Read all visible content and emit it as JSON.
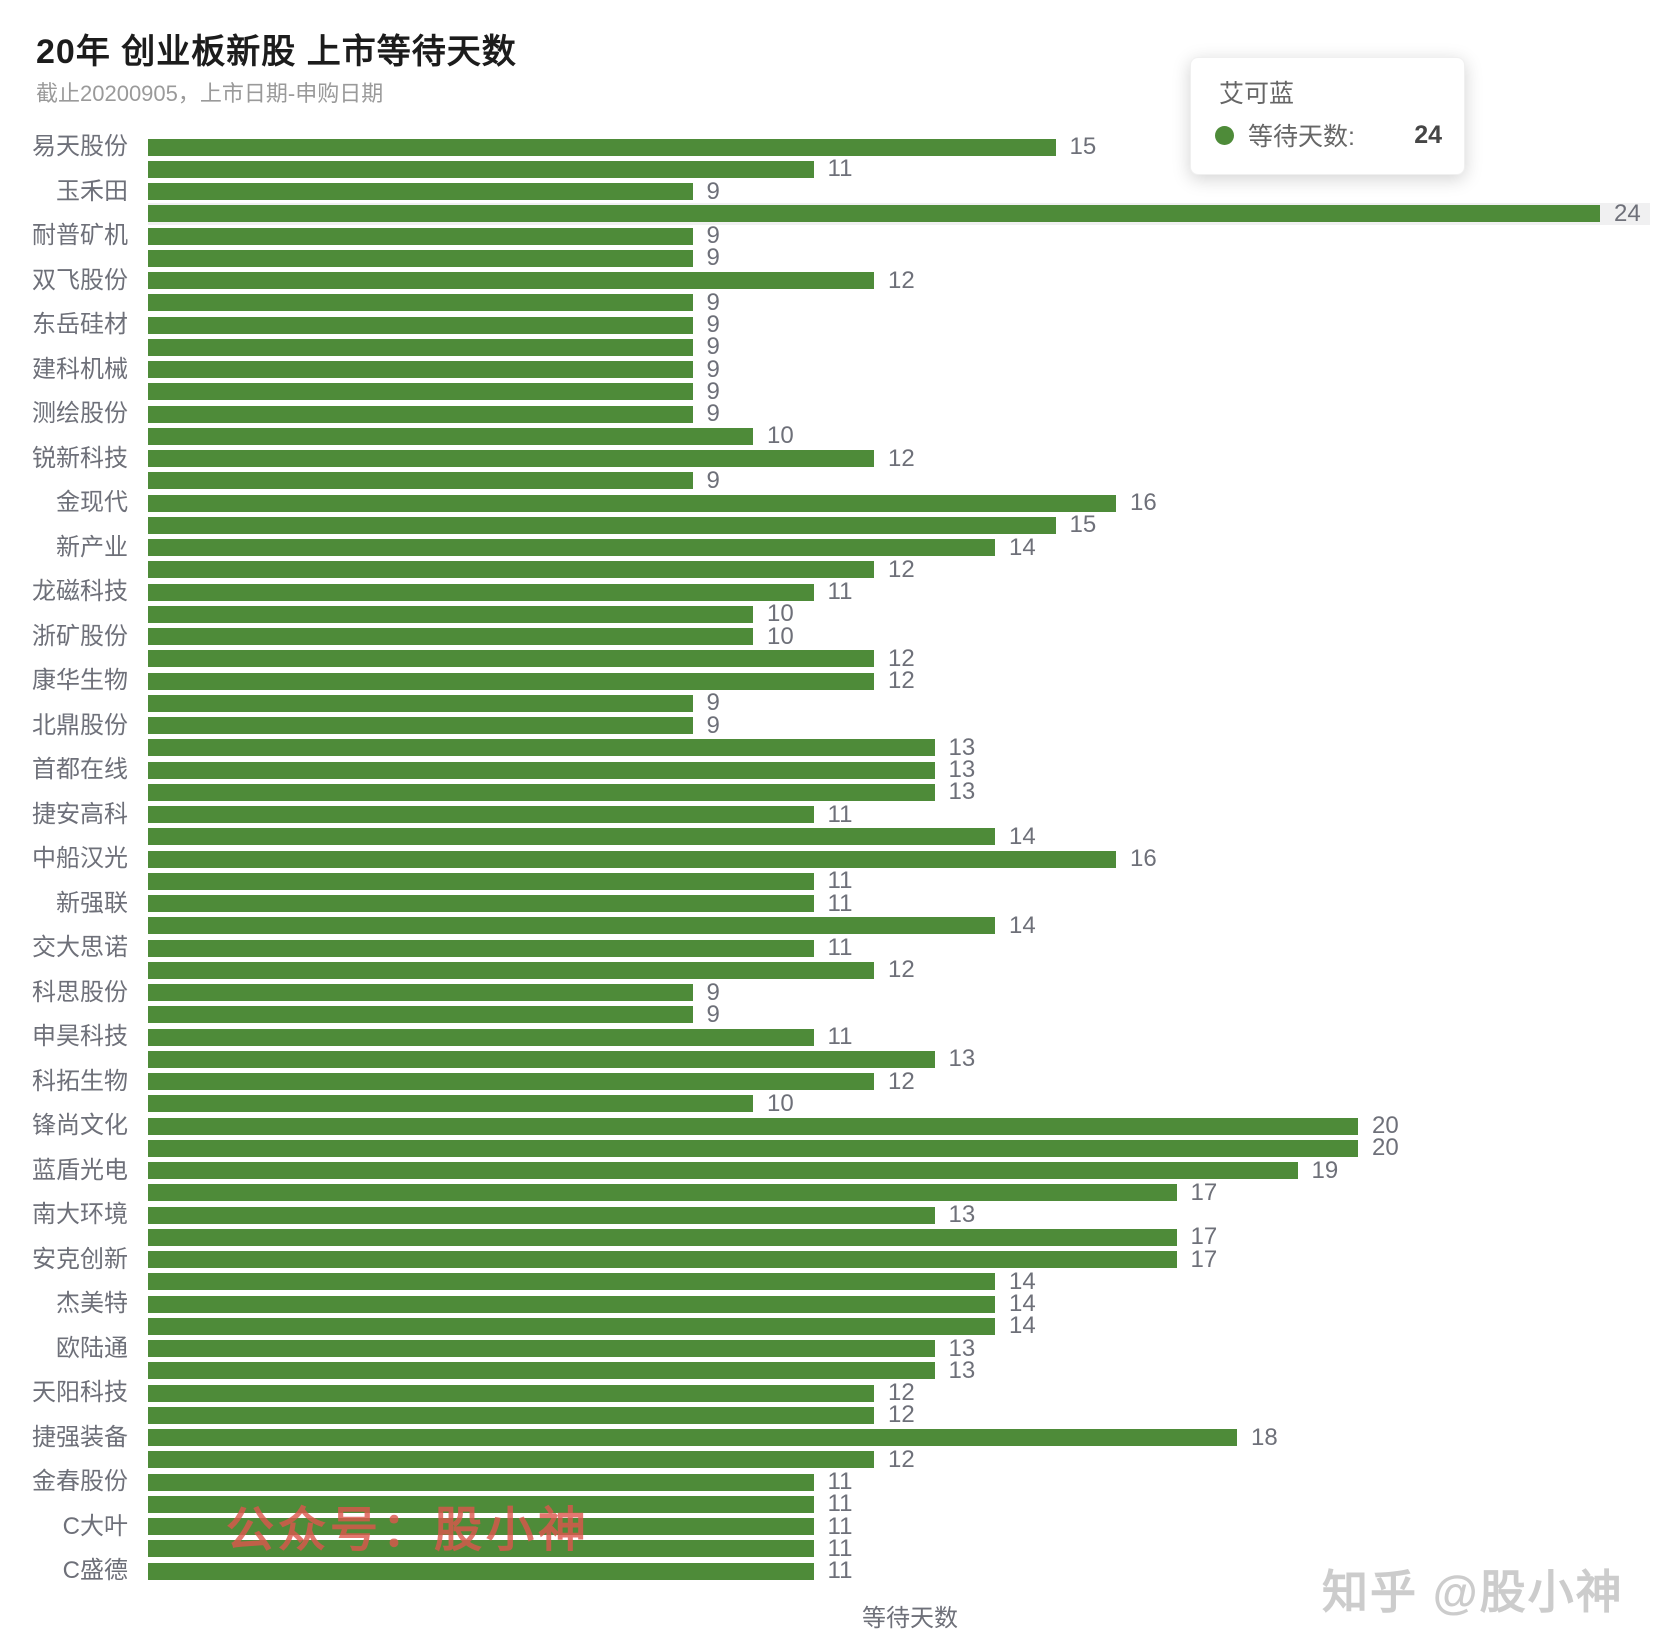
{
  "page": {
    "title": "20年 创业板新股 上市等待天数",
    "subtitle": "截止20200905，上市日期-申购日期",
    "xaxis_name": "等待天数"
  },
  "tooltip": {
    "series_name": "艾可蓝",
    "metric_label": "等待天数:",
    "value": "24",
    "dot_color": "#4e8b39"
  },
  "watermarks": {
    "red_text": "公众号：股小神",
    "red_color": "rgba(221,85,76,0.8)",
    "zhihu_text": "知乎 @股小神",
    "zhihu_color": "rgba(195,195,195,0.85)"
  },
  "chart_data": {
    "type": "bar",
    "orientation": "horizontal",
    "title": "20年 创业板新股 上市等待天数",
    "subtitle": "截止20200905，上市日期-申购日期",
    "xlabel": "等待天数",
    "series_name": "等待天数",
    "xlim": [
      0,
      24
    ],
    "grid": false,
    "bar_color": "#4e8b39",
    "value_label_color": "#6e7079",
    "axis_label_color": "#6e7079",
    "highlight_band_color": "#f0f0f1",
    "highlighted_item": "艾可蓝",
    "items": [
      {
        "label": "易天股份",
        "value": 15
      },
      {
        "label": "",
        "value": 11
      },
      {
        "label": "玉禾田",
        "value": 9
      },
      {
        "label": "",
        "value": 24,
        "highlight": true,
        "name": "艾可蓝"
      },
      {
        "label": "耐普矿机",
        "value": 9
      },
      {
        "label": "",
        "value": 9
      },
      {
        "label": "双飞股份",
        "value": 12
      },
      {
        "label": "",
        "value": 9
      },
      {
        "label": "东岳硅材",
        "value": 9
      },
      {
        "label": "",
        "value": 9
      },
      {
        "label": "建科机械",
        "value": 9
      },
      {
        "label": "",
        "value": 9
      },
      {
        "label": "测绘股份",
        "value": 9
      },
      {
        "label": "",
        "value": 10
      },
      {
        "label": "锐新科技",
        "value": 12
      },
      {
        "label": "",
        "value": 9
      },
      {
        "label": "金现代",
        "value": 16
      },
      {
        "label": "",
        "value": 15
      },
      {
        "label": "新产业",
        "value": 14
      },
      {
        "label": "",
        "value": 12
      },
      {
        "label": "龙磁科技",
        "value": 11
      },
      {
        "label": "",
        "value": 10
      },
      {
        "label": "浙矿股份",
        "value": 10
      },
      {
        "label": "",
        "value": 12
      },
      {
        "label": "康华生物",
        "value": 12
      },
      {
        "label": "",
        "value": 9
      },
      {
        "label": "北鼎股份",
        "value": 9
      },
      {
        "label": "",
        "value": 13
      },
      {
        "label": "首都在线",
        "value": 13
      },
      {
        "label": "",
        "value": 13
      },
      {
        "label": "捷安高科",
        "value": 11
      },
      {
        "label": "",
        "value": 14
      },
      {
        "label": "中船汉光",
        "value": 16
      },
      {
        "label": "",
        "value": 11
      },
      {
        "label": "新强联",
        "value": 11
      },
      {
        "label": "",
        "value": 14
      },
      {
        "label": "交大思诺",
        "value": 11
      },
      {
        "label": "",
        "value": 12
      },
      {
        "label": "科思股份",
        "value": 9
      },
      {
        "label": "",
        "value": 9
      },
      {
        "label": "申昊科技",
        "value": 11
      },
      {
        "label": "",
        "value": 13
      },
      {
        "label": "科拓生物",
        "value": 12
      },
      {
        "label": "",
        "value": 10
      },
      {
        "label": "锋尚文化",
        "value": 20
      },
      {
        "label": "",
        "value": 20
      },
      {
        "label": "蓝盾光电",
        "value": 19
      },
      {
        "label": "",
        "value": 17
      },
      {
        "label": "南大环境",
        "value": 13
      },
      {
        "label": "",
        "value": 17
      },
      {
        "label": "安克创新",
        "value": 17
      },
      {
        "label": "",
        "value": 14
      },
      {
        "label": "杰美特",
        "value": 14
      },
      {
        "label": "",
        "value": 14
      },
      {
        "label": "欧陆通",
        "value": 13
      },
      {
        "label": "",
        "value": 13
      },
      {
        "label": "天阳科技",
        "value": 12
      },
      {
        "label": "",
        "value": 12
      },
      {
        "label": "捷强装备",
        "value": 18
      },
      {
        "label": "",
        "value": 12
      },
      {
        "label": "金春股份",
        "value": 11
      },
      {
        "label": "",
        "value": 11
      },
      {
        "label": "C大叶",
        "value": 11
      },
      {
        "label": "",
        "value": 11
      },
      {
        "label": "C盛德",
        "value": 11
      }
    ]
  }
}
